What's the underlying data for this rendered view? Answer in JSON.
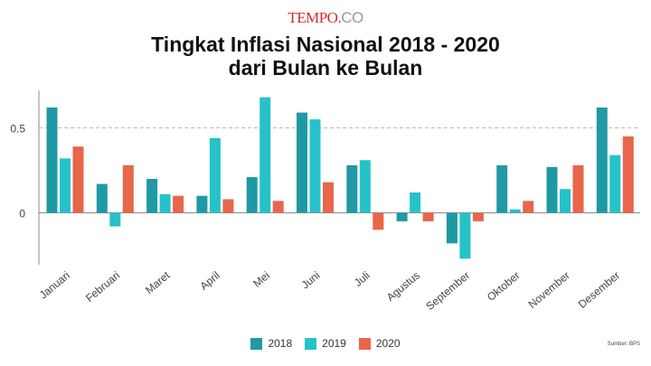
{
  "header": {
    "logo_brand": "TEMPO",
    "logo_dot": ".",
    "logo_co": "CO",
    "title_line1": "Tingkat Inflasi Nasional 2018 - 2020",
    "title_line2": "dari Bulan ke Bulan"
  },
  "source": "Sumber: BPS",
  "colors": {
    "2018": "#1f9aa5",
    "2019": "#26c2c9",
    "2020": "#e8664a"
  },
  "chart_data": {
    "type": "bar",
    "title": "Tingkat Inflasi Nasional 2018 - 2020 dari Bulan ke Bulan",
    "categories": [
      "Januari",
      "Februari",
      "Maret",
      "April",
      "Mei",
      "Juni",
      "Juli",
      "Agustus",
      "September",
      "Oktober",
      "November",
      "Desember"
    ],
    "series": [
      {
        "name": "2018",
        "values": [
          0.62,
          0.17,
          0.2,
          0.1,
          0.21,
          0.59,
          0.28,
          -0.05,
          -0.18,
          0.28,
          0.27,
          0.62
        ]
      },
      {
        "name": "2019",
        "values": [
          0.32,
          -0.08,
          0.11,
          0.44,
          0.68,
          0.55,
          0.31,
          0.12,
          -0.27,
          0.02,
          0.14,
          0.34
        ]
      },
      {
        "name": "2020",
        "values": [
          0.39,
          0.28,
          0.1,
          0.08,
          0.07,
          0.18,
          -0.1,
          -0.05,
          -0.05,
          0.07,
          0.28,
          0.45
        ]
      }
    ],
    "yticks": [
      0,
      0.5
    ],
    "ytick_labels": [
      "0",
      "0.5"
    ],
    "ylim": [
      -0.31,
      0.72
    ],
    "legend": "bottom-center",
    "gridline": "dashed at 0.5"
  }
}
